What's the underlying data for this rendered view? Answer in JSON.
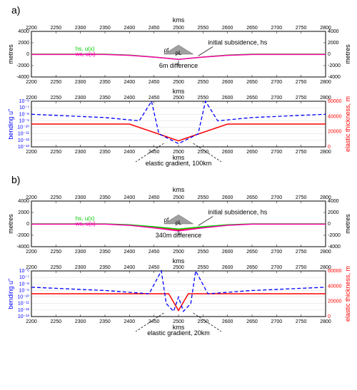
{
  "panel_a": {
    "label": "a)",
    "top_chart": {
      "type": "line",
      "xlim": [
        2200,
        2800
      ],
      "ylim": [
        -4000,
        4000
      ],
      "xtick_step": 50,
      "ytick_step": 2000,
      "xlabel_top": "kms",
      "ylabel_left": "metres",
      "ylabel_right": "metres",
      "background_color": "#ffffff",
      "axis_color": "#000000",
      "hs_color": "#00cc00",
      "ws_color": "#ff00aa",
      "fill_color": "#ff0000",
      "triangle_color": "#a0a0a0",
      "hs_legend": "hs, u(x)",
      "ws_legend": "ws, u(x)",
      "rho_f": "ρf",
      "rho_l": "ρL",
      "subsidence_label": "initial subsidence, hs",
      "diff_label": "6m difference",
      "hs_series": [
        {
          "x": 2200,
          "y": 0
        },
        {
          "x": 2350,
          "y": 0
        },
        {
          "x": 2400,
          "y": -150
        },
        {
          "x": 2450,
          "y": -500
        },
        {
          "x": 2500,
          "y": -900
        },
        {
          "x": 2550,
          "y": -500
        },
        {
          "x": 2600,
          "y": -150
        },
        {
          "x": 2650,
          "y": 0
        },
        {
          "x": 2800,
          "y": 0
        }
      ],
      "ws_series": [
        {
          "x": 2200,
          "y": -50
        },
        {
          "x": 2350,
          "y": -50
        },
        {
          "x": 2400,
          "y": -200
        },
        {
          "x": 2450,
          "y": -520
        },
        {
          "x": 2500,
          "y": -906
        },
        {
          "x": 2550,
          "y": -520
        },
        {
          "x": 2600,
          "y": -200
        },
        {
          "x": 2650,
          "y": -50
        },
        {
          "x": 2800,
          "y": -50
        }
      ]
    },
    "bottom_chart": {
      "type": "line",
      "xlim": [
        2200,
        2800
      ],
      "xtick_step": 50,
      "xlabel_top": "kms",
      "xlabel_bottom": "kms",
      "ylabel_left": "bending u''",
      "ylabel_right": "elastic thickness, m",
      "left_ticks": [
        "10⁻⁶",
        "10⁻⁷",
        "10⁻⁸",
        "10⁻⁹",
        "10⁻¹⁰",
        "10⁻¹¹",
        "10⁻¹²",
        "10⁻¹³"
      ],
      "right_ylim": [
        0,
        60000
      ],
      "right_tick_step": 20000,
      "bending_color": "#0000ff",
      "thickness_color": "#ff0000",
      "grid_color": "#dddddd",
      "left_axis_color": "#0000ff",
      "right_axis_color": "#ff0000",
      "gradient_label": "elastic gradient, 100km",
      "thickness_series": [
        {
          "x": 2200,
          "y": 30000
        },
        {
          "x": 2400,
          "y": 30000
        },
        {
          "x": 2500,
          "y": 8000
        },
        {
          "x": 2600,
          "y": 30000
        },
        {
          "x": 2800,
          "y": 30000
        }
      ],
      "bending_series": [
        {
          "x": 2200,
          "y": 5
        },
        {
          "x": 2350,
          "y": 4.5
        },
        {
          "x": 2420,
          "y": 4
        },
        {
          "x": 2445,
          "y": 7
        },
        {
          "x": 2460,
          "y": 2
        },
        {
          "x": 2500,
          "y": 0.5
        },
        {
          "x": 2540,
          "y": 2
        },
        {
          "x": 2555,
          "y": 7
        },
        {
          "x": 2580,
          "y": 4
        },
        {
          "x": 2650,
          "y": 4.5
        },
        {
          "x": 2800,
          "y": 5
        }
      ]
    }
  },
  "panel_b": {
    "label": "b)",
    "top_chart": {
      "type": "line",
      "xlim": [
        2200,
        2800
      ],
      "ylim": [
        -4000,
        4000
      ],
      "xtick_step": 50,
      "ytick_step": 2000,
      "xlabel_top": "kms",
      "ylabel_left": "metres",
      "ylabel_right": "metres",
      "background_color": "#ffffff",
      "axis_color": "#000000",
      "hs_color": "#00cc00",
      "ws_color": "#ff00aa",
      "fill_color": "#ff0000",
      "triangle_color": "#a0a0a0",
      "hs_legend": "hs, u(x)",
      "ws_legend": "ws, u(x)",
      "rho_f": "ρf",
      "rho_l": "ρL",
      "subsidence_label": "initial subsidence, hs",
      "diff_label": "340m difference",
      "hs_series": [
        {
          "x": 2200,
          "y": 0
        },
        {
          "x": 2350,
          "y": 0
        },
        {
          "x": 2400,
          "y": -150
        },
        {
          "x": 2450,
          "y": -500
        },
        {
          "x": 2500,
          "y": -900
        },
        {
          "x": 2550,
          "y": -500
        },
        {
          "x": 2600,
          "y": -150
        },
        {
          "x": 2650,
          "y": 0
        },
        {
          "x": 2800,
          "y": 0
        }
      ],
      "ws_series": [
        {
          "x": 2200,
          "y": -40
        },
        {
          "x": 2350,
          "y": -40
        },
        {
          "x": 2400,
          "y": -250
        },
        {
          "x": 2450,
          "y": -700
        },
        {
          "x": 2500,
          "y": -1240
        },
        {
          "x": 2550,
          "y": -700
        },
        {
          "x": 2600,
          "y": -250
        },
        {
          "x": 2650,
          "y": -40
        },
        {
          "x": 2800,
          "y": -40
        }
      ]
    },
    "bottom_chart": {
      "type": "line",
      "xlim": [
        2200,
        2800
      ],
      "xtick_step": 50,
      "xlabel_top": "kms",
      "xlabel_bottom": "kms",
      "ylabel_left": "bending u''",
      "ylabel_right": "elastic thickness, m",
      "left_ticks": [
        "10⁻⁶",
        "10⁻⁷",
        "10⁻⁸",
        "10⁻⁹",
        "10⁻¹⁰",
        "10⁻¹¹",
        "10⁻¹²",
        "10⁻¹³"
      ],
      "right_ylim": [
        0,
        60000
      ],
      "right_tick_step": 20000,
      "bending_color": "#0000ff",
      "thickness_color": "#ff0000",
      "grid_color": "#dddddd",
      "left_axis_color": "#0000ff",
      "right_axis_color": "#ff0000",
      "gradient_label": "elastic gradient, 20km",
      "thickness_series": [
        {
          "x": 2200,
          "y": 30000
        },
        {
          "x": 2480,
          "y": 30000
        },
        {
          "x": 2500,
          "y": 8000
        },
        {
          "x": 2520,
          "y": 30000
        },
        {
          "x": 2800,
          "y": 30000
        }
      ],
      "bending_series": [
        {
          "x": 2200,
          "y": 4.5
        },
        {
          "x": 2350,
          "y": 4
        },
        {
          "x": 2440,
          "y": 3.5
        },
        {
          "x": 2465,
          "y": 7
        },
        {
          "x": 2475,
          "y": 2
        },
        {
          "x": 2490,
          "y": 0.8
        },
        {
          "x": 2500,
          "y": 3
        },
        {
          "x": 2510,
          "y": 0.8
        },
        {
          "x": 2525,
          "y": 2
        },
        {
          "x": 2535,
          "y": 7
        },
        {
          "x": 2560,
          "y": 3.5
        },
        {
          "x": 2650,
          "y": 4
        },
        {
          "x": 2800,
          "y": 4.5
        }
      ]
    }
  }
}
